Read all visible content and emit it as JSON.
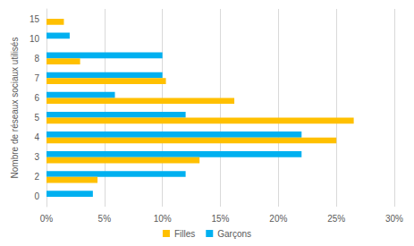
{
  "chart_data": {
    "type": "bar",
    "orientation": "horizontal",
    "y_label": "Nombre de réseaux sociaux utilisés",
    "categories": [
      "0",
      "2",
      "3",
      "4",
      "5",
      "6",
      "7",
      "8",
      "10",
      "15"
    ],
    "series": [
      {
        "name": "Filles",
        "color": "#ffc000",
        "values": [
          0,
          4.4,
          13.2,
          25,
          26.5,
          16.2,
          10.3,
          2.9,
          0,
          1.5
        ]
      },
      {
        "name": "Garçons",
        "color": "#00b0f0",
        "values": [
          4,
          12,
          22,
          22,
          12,
          5.9,
          10,
          10,
          2,
          0
        ]
      }
    ],
    "xlim": [
      0,
      30
    ],
    "xticks": [
      {
        "value": 0,
        "label": "0%"
      },
      {
        "value": 5,
        "label": "5%"
      },
      {
        "value": 10,
        "label": "10%"
      },
      {
        "value": 15,
        "label": "15%"
      },
      {
        "value": 20,
        "label": "20%"
      },
      {
        "value": 25,
        "label": "25%"
      },
      {
        "value": 30,
        "label": "30%"
      }
    ],
    "grid": true,
    "legend": "bottom"
  }
}
